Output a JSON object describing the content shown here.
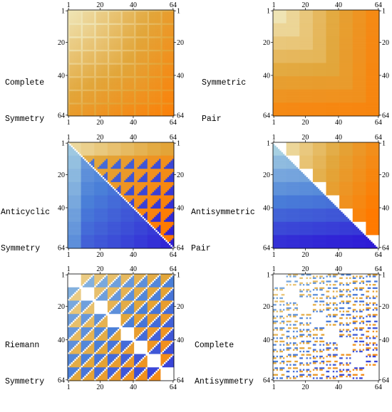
{
  "figure": {
    "matrix_size": 64,
    "tick_labels": [
      "1",
      "20",
      "40",
      "64"
    ],
    "tick_values": [
      1,
      20,
      40,
      64
    ],
    "block_size": 8,
    "colors": {
      "light_yellow": "#efe4b4",
      "mid_gold": "#e2a63a",
      "orange": "#ff7a00",
      "light_blue": "#a7d0e2",
      "mid_blue": "#4a7fd8",
      "deep_blue": "#2e1cd6",
      "zero": "#ffffff",
      "grid_line": "#d8d2a0"
    }
  },
  "chart_data": [
    {
      "type": "heatmap",
      "title": "Complete Symmetry",
      "title_lines": [
        "Complete",
        "Symmetry"
      ],
      "rows": 64,
      "cols": 64,
      "x_ticks": [
        1,
        20,
        40,
        64
      ],
      "y_ticks": [
        1,
        20,
        40,
        64
      ],
      "pattern": "complete-symmetry",
      "value_range": [
        0,
        1
      ],
      "description_color_scale": "light yellow to orange, blocks of 8 with lighter grid lines"
    },
    {
      "type": "heatmap",
      "title": "Symmetric Pair",
      "title_lines": [
        "Symmetric",
        "Pair"
      ],
      "rows": 64,
      "cols": 64,
      "x_ticks": [
        1,
        20,
        40,
        64
      ],
      "y_ticks": [
        1,
        20,
        40,
        64
      ],
      "pattern": "symmetric-pair",
      "value_range": [
        0,
        1
      ]
    },
    {
      "type": "heatmap",
      "title": "Anticyclic Symmetry",
      "title_lines": [
        "Anticyclic",
        "Symmetry"
      ],
      "rows": 64,
      "cols": 64,
      "x_ticks": [
        1,
        20,
        40,
        64
      ],
      "y_ticks": [
        1,
        20,
        40,
        64
      ],
      "pattern": "anticyclic",
      "value_range": [
        -1,
        1
      ]
    },
    {
      "type": "heatmap",
      "title": "Antisymmetric Pair",
      "title_lines": [
        "Antisymmetric",
        "Pair"
      ],
      "rows": 64,
      "cols": 64,
      "x_ticks": [
        1,
        20,
        40,
        64
      ],
      "y_ticks": [
        1,
        20,
        40,
        64
      ],
      "pattern": "antisymmetric-pair",
      "value_range": [
        -1,
        1
      ]
    },
    {
      "type": "heatmap",
      "title": "Riemann Symmetry",
      "title_lines": [
        "Riemann",
        "Symmetry"
      ],
      "rows": 64,
      "cols": 64,
      "x_ticks": [
        1,
        20,
        40,
        64
      ],
      "y_ticks": [
        1,
        20,
        40,
        64
      ],
      "pattern": "riemann",
      "value_range": [
        -1,
        1
      ]
    },
    {
      "type": "heatmap",
      "title": "Complete Antisymmetry",
      "title_lines": [
        "Complete",
        "Antisymmetry"
      ],
      "rows": 64,
      "cols": 64,
      "x_ticks": [
        1,
        20,
        40,
        64
      ],
      "y_ticks": [
        1,
        20,
        40,
        64
      ],
      "pattern": "complete-antisymmetry",
      "value_range": [
        -1,
        1
      ]
    }
  ]
}
